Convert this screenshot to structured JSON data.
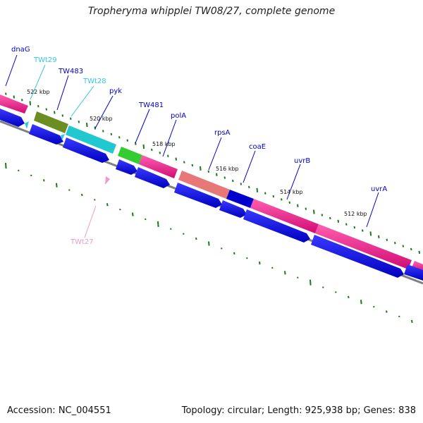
{
  "title": "Tropheryma whipplei TW08/27, complete genome",
  "footer": {
    "accession": "Accession: NC_004551",
    "topology": "Topology: circular; Length: 925,938 bp; Genes: 838"
  },
  "ticks": [
    "522 kbp",
    "520 kbp",
    "518 kbp",
    "516 kbp",
    "514 kbp",
    "512 kbp"
  ],
  "genes": [
    {
      "name": "dnaG",
      "type": "CDS"
    },
    {
      "name": "TWt29",
      "type": "tRNA"
    },
    {
      "name": "TW483",
      "type": "CDS"
    },
    {
      "name": "TWt28",
      "type": "tRNA"
    },
    {
      "name": "pyk",
      "type": "CDS"
    },
    {
      "name": "TW481",
      "type": "CDS"
    },
    {
      "name": "polA",
      "type": "CDS"
    },
    {
      "name": "rpsA",
      "type": "CDS"
    },
    {
      "name": "coaE",
      "type": "CDS"
    },
    {
      "name": "uvrB",
      "type": "CDS"
    },
    {
      "name": "uvrA",
      "type": "CDS"
    },
    {
      "name": "TWt27",
      "type": "tRNA"
    }
  ],
  "colors": {
    "cds": "#0000ee",
    "trna": "#33c8e0",
    "trna_reverse": "#f09ac8",
    "magenta": "#ee1a8c",
    "olive": "#6b8e23",
    "cyan": "#22c8d0",
    "green": "#33cc33",
    "salmon": "#e87878",
    "backbone": "#777777",
    "gc_dots": "#1a7a1a"
  }
}
